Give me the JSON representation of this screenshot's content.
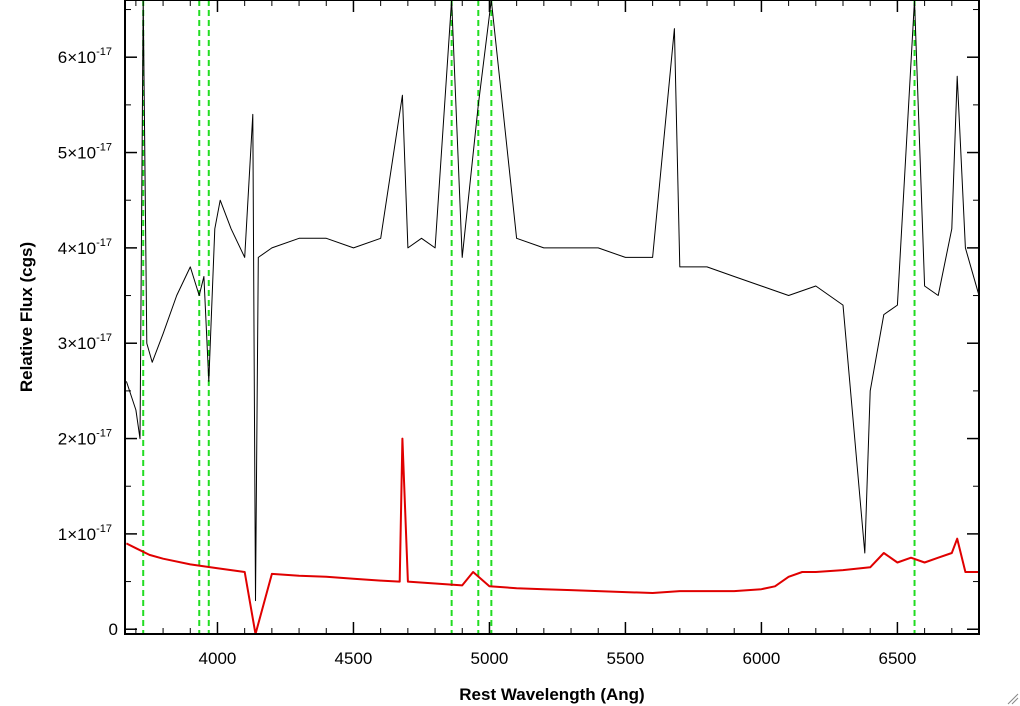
{
  "chart_data": {
    "type": "line",
    "title": "",
    "xlabel": "Rest Wavelength (Ang)",
    "ylabel": "Relative Flux (cgs)",
    "xlim": [
      3660,
      6800
    ],
    "ylim": [
      -5e-19,
      6.6e-17
    ],
    "x_ticks": [
      {
        "value": 4000,
        "label": "4000"
      },
      {
        "value": 4500,
        "label": "4500"
      },
      {
        "value": 5000,
        "label": "5000"
      },
      {
        "value": 5500,
        "label": "5500"
      },
      {
        "value": 6000,
        "label": "6000"
      },
      {
        "value": 6500,
        "label": "6500"
      }
    ],
    "y_ticks": [
      {
        "value": 0,
        "mantissa": "0",
        "exponent": ""
      },
      {
        "value": 1e-17,
        "mantissa": "1×10",
        "exponent": "-17"
      },
      {
        "value": 2e-17,
        "mantissa": "2×10",
        "exponent": "-17"
      },
      {
        "value": 3e-17,
        "mantissa": "3×10",
        "exponent": "-17"
      },
      {
        "value": 4e-17,
        "mantissa": "4×10",
        "exponent": "-17"
      },
      {
        "value": 5e-17,
        "mantissa": "5×10",
        "exponent": "-17"
      },
      {
        "value": 6e-17,
        "mantissa": "6×10",
        "exponent": "-17"
      }
    ],
    "series": [
      {
        "color": "#000000",
        "x": [
          3665,
          3700,
          3715,
          3727,
          3740,
          3760,
          3800,
          3850,
          3900,
          3933,
          3950,
          3968,
          3990,
          4010,
          4050,
          4100,
          4130,
          4140,
          4150,
          4200,
          4300,
          4400,
          4500,
          4600,
          4680,
          4700,
          4750,
          4800,
          4861,
          4900,
          4959,
          5007,
          5100,
          5200,
          5300,
          5400,
          5500,
          5600,
          5680,
          5700,
          5800,
          5900,
          6000,
          6100,
          6200,
          6300,
          6380,
          6400,
          6450,
          6500,
          6563,
          6600,
          6650,
          6700,
          6720,
          6750,
          6800
        ],
        "y": [
          2.6e-17,
          2.3e-17,
          2e-17,
          6.6e-17,
          3e-17,
          2.8e-17,
          3.1e-17,
          3.5e-17,
          3.8e-17,
          3.5e-17,
          3.7e-17,
          2.6e-17,
          4.2e-17,
          4.5e-17,
          4.2e-17,
          3.9e-17,
          5.4e-17,
          3e-18,
          3.9e-17,
          4e-17,
          4.1e-17,
          4.1e-17,
          4e-17,
          4.1e-17,
          5.6e-17,
          4e-17,
          4.1e-17,
          4e-17,
          6.6e-17,
          3.9e-17,
          5.5e-17,
          6.6e-17,
          4.1e-17,
          4e-17,
          4e-17,
          4e-17,
          3.9e-17,
          3.9e-17,
          6.3e-17,
          3.8e-17,
          3.8e-17,
          3.7e-17,
          3.6e-17,
          3.5e-17,
          3.6e-17,
          3.4e-17,
          8e-18,
          2.5e-17,
          3.3e-17,
          3.4e-17,
          6.6e-17,
          3.6e-17,
          3.5e-17,
          4.2e-17,
          5.8e-17,
          4e-17,
          3.5e-17
        ]
      },
      {
        "color": "#e00000",
        "x": [
          3665,
          3700,
          3750,
          3800,
          3900,
          4000,
          4100,
          4140,
          4200,
          4300,
          4400,
          4500,
          4600,
          4670,
          4680,
          4700,
          4800,
          4900,
          4940,
          5000,
          5100,
          5200,
          5300,
          5400,
          5500,
          5600,
          5700,
          5800,
          5900,
          6000,
          6050,
          6100,
          6150,
          6200,
          6300,
          6400,
          6450,
          6500,
          6550,
          6600,
          6650,
          6700,
          6720,
          6750,
          6800
        ],
        "y": [
          9e-18,
          8.5e-18,
          7.8e-18,
          7.4e-18,
          6.8e-18,
          6.4e-18,
          6e-18,
          -5e-19,
          5.8e-18,
          5.6e-18,
          5.5e-18,
          5.3e-18,
          5.1e-18,
          5e-18,
          2e-17,
          5e-18,
          4.8e-18,
          4.6e-18,
          6e-18,
          4.5e-18,
          4.3e-18,
          4.2e-18,
          4.1e-18,
          4e-18,
          3.9e-18,
          3.8e-18,
          4e-18,
          4e-18,
          4e-18,
          4.2e-18,
          4.5e-18,
          5.5e-18,
          6e-18,
          6e-18,
          6.2e-18,
          6.5e-18,
          8e-18,
          7e-18,
          7.5e-18,
          7e-18,
          7.5e-18,
          8e-18,
          9.5e-18,
          6e-18,
          6e-18
        ]
      }
    ],
    "reference_lines": {
      "color": "#22dd22",
      "style": "dashed",
      "x": [
        3727,
        3933,
        3968,
        4861,
        4959,
        5007,
        6563
      ]
    },
    "grid": false
  }
}
